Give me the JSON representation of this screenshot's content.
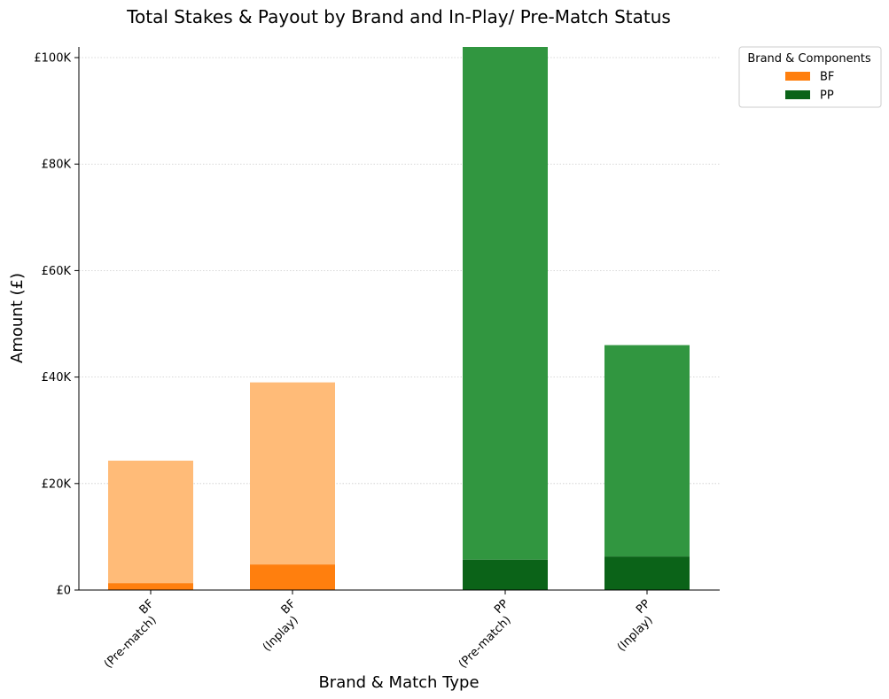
{
  "chart_data": {
    "type": "bar",
    "stacked": true,
    "title": "Total Stakes & Payout by Brand and In-Play/ Pre-Match Status",
    "xlabel": "Brand & Match Type",
    "ylabel": "Amount (£)",
    "ylim": [
      0,
      102000
    ],
    "yticks": [
      {
        "value": 0,
        "label": "£0"
      },
      {
        "value": 20000,
        "label": "£20K"
      },
      {
        "value": 40000,
        "label": "£40K"
      },
      {
        "value": 60000,
        "label": "£60K"
      },
      {
        "value": 80000,
        "label": "£80K"
      },
      {
        "value": 100000,
        "label": "£100K"
      }
    ],
    "grid": "y-dotted",
    "categories": [
      {
        "label_line1": "BF",
        "label_line2": "(Pre-match)",
        "brand": "BF",
        "slot": 0,
        "bottom": 1300,
        "total": 24300
      },
      {
        "label_line1": "BF",
        "label_line2": "(Inplay)",
        "brand": "BF",
        "slot": 1,
        "bottom": 4800,
        "total": 39000
      },
      {
        "label_line1": "PP",
        "label_line2": "(Pre-match)",
        "brand": "PP",
        "slot": 2.5,
        "bottom": 5700,
        "total": 102000
      },
      {
        "label_line1": "PP",
        "label_line2": "(Inplay)",
        "brand": "PP",
        "slot": 3.5,
        "bottom": 6300,
        "total": 46000
      }
    ],
    "colors": {
      "BF_dark": "#ff7f0e",
      "BF_light": "#ffbb78",
      "PP_dark": "#0b6318",
      "PP_light": "#319640"
    },
    "legend": {
      "title": "Brand & Components",
      "position": "outside-top-right",
      "items": [
        {
          "label": "BF",
          "color": "#ff7f0e"
        },
        {
          "label": "PP",
          "color": "#0b6318"
        }
      ]
    }
  }
}
